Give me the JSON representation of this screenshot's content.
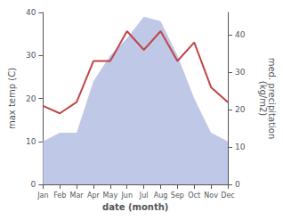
{
  "chart_data": {
    "type": "line",
    "categories": [
      "Jan",
      "Feb",
      "Mar",
      "Apr",
      "May",
      "Jun",
      "Jul",
      "Aug",
      "Sep",
      "Oct",
      "Nov",
      "Dec"
    ],
    "series": [
      {
        "type": "area",
        "color": "#c0c8e8",
        "values": [
          10,
          12,
          12,
          24,
          30,
          34,
          39,
          38,
          30,
          20,
          12,
          10
        ]
      },
      {
        "type": "line",
        "color": "#c04545",
        "axis": "y2",
        "values": [
          21,
          19,
          22,
          33,
          33,
          41,
          36,
          41,
          33,
          38,
          26,
          22
        ]
      }
    ],
    "xlabel": "date (month)",
    "ylabel": "max temp (C)",
    "y2label": "med. precipitation\n(kg/m2)",
    "ylim": [
      0,
      40
    ],
    "yticks": [
      0,
      10,
      20,
      30,
      40
    ],
    "y2lim": [
      0,
      46
    ],
    "y2ticks": [
      0,
      10,
      20,
      30,
      40
    ],
    "grid": false
  }
}
